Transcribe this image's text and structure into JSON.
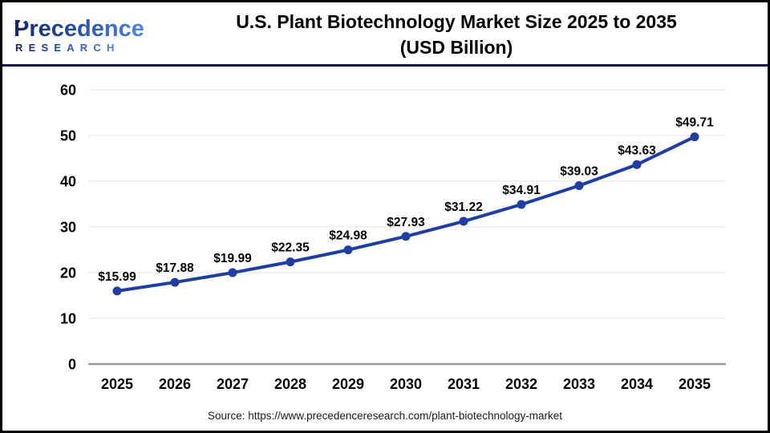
{
  "header": {
    "logo": {
      "name": "Precedence",
      "subname": "RESEARCH"
    },
    "title_line1": "U.S. Plant Biotechnology Market Size 2025 to 2035",
    "title_line2": "(USD Billion)"
  },
  "source": "Source: https://www.precedenceresearch.com/plant-biotechnology-market",
  "chart_data": {
    "type": "line",
    "title": "U.S. Plant Biotechnology Market Size 2025 to 2035 (USD Billion)",
    "categories": [
      "2025",
      "2026",
      "2027",
      "2028",
      "2029",
      "2030",
      "2031",
      "2032",
      "2033",
      "2034",
      "2035"
    ],
    "values": [
      15.99,
      17.88,
      19.99,
      22.35,
      24.98,
      27.93,
      31.22,
      34.91,
      39.03,
      43.63,
      49.71
    ],
    "label_prefix": "$",
    "xlabel": "",
    "ylabel": "",
    "ylim": [
      0,
      60
    ],
    "ytick_step": 10,
    "grid": true,
    "legend": "none",
    "colors": {
      "line": "#1e3fa1",
      "point": "#1e3fa1",
      "grid": "#e9e9e9",
      "axis": "#9a9a9a",
      "value_label": "#000000",
      "tick_label": "#000000"
    }
  },
  "colors": {
    "border": "#000000",
    "header_rule": "#10104a",
    "logo_dark": "#17245e",
    "logo_light": "#4a86e8",
    "source_text": "#1a1a1a"
  }
}
